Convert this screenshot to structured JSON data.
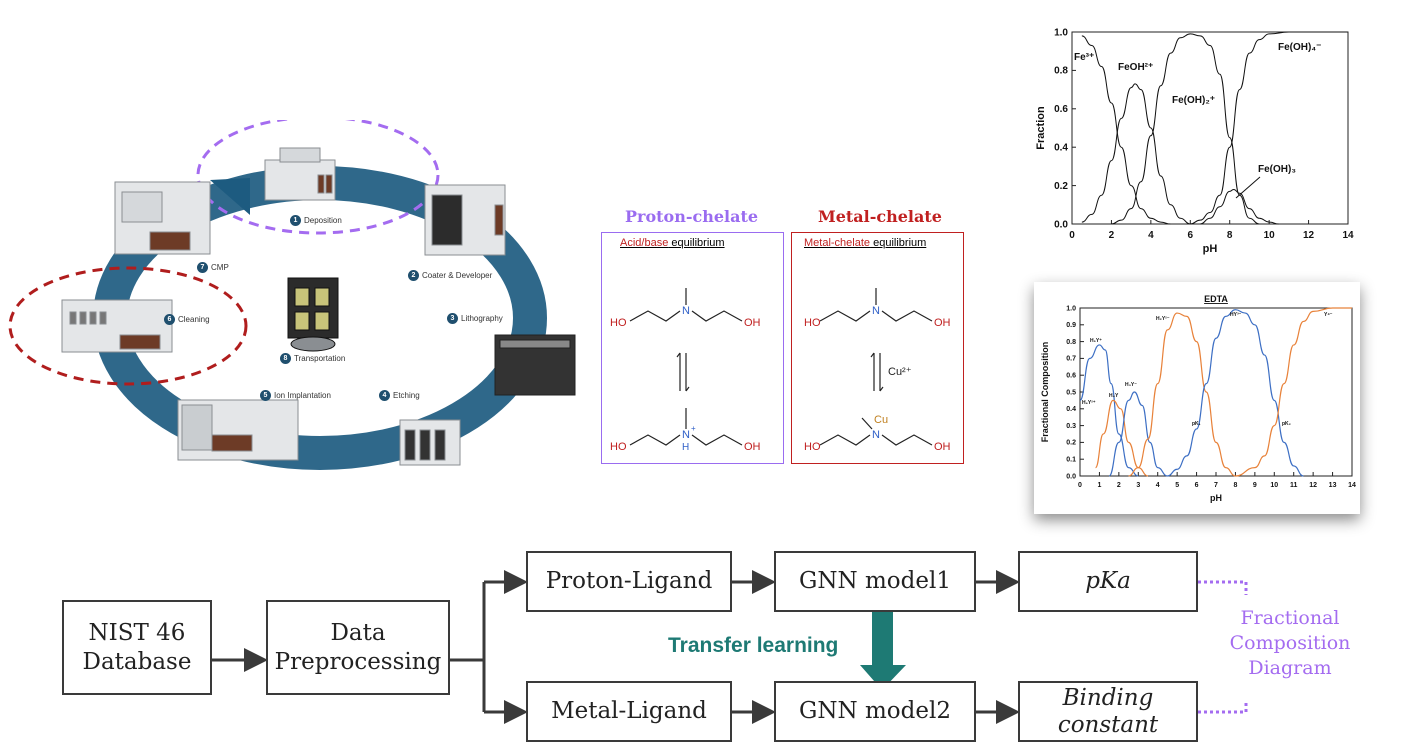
{
  "fab_cycle": {
    "steps": [
      {
        "num": "1",
        "label": "Deposition"
      },
      {
        "num": "2",
        "label": "Coater & Developer"
      },
      {
        "num": "3",
        "label": "Lithography"
      },
      {
        "num": "4",
        "label": "Etching"
      },
      {
        "num": "5",
        "label": "Ion Implantation"
      },
      {
        "num": "6",
        "label": "Cleaning"
      },
      {
        "num": "7",
        "label": "CMP"
      },
      {
        "num": "8",
        "label": "Transportation"
      }
    ]
  },
  "chelates": {
    "proton": {
      "title": "Proton-chelate",
      "subtitle_red": "Acid/base",
      "subtitle_black": " equilibrium"
    },
    "metal": {
      "title": "Metal-chelate",
      "subtitle_red": "Metal-chelate",
      "subtitle_black": " equilibrium",
      "ion": "Cu²⁺",
      "metal_atom": "Cu"
    },
    "atoms": {
      "ho": "HO",
      "oh": "OH",
      "n": "N",
      "h": "H",
      "plus": "+"
    }
  },
  "chart_data": [
    {
      "type": "line",
      "title": "",
      "xlabel": "pH",
      "ylabel": "Fraction",
      "xlim": [
        0,
        14
      ],
      "ylim": [
        0,
        1.0
      ],
      "xticks": [
        "0",
        "2",
        "4",
        "6",
        "8",
        "10",
        "12",
        "14"
      ],
      "yticks": [
        "0.0",
        "0.2",
        "0.4",
        "0.6",
        "0.8",
        "1.0"
      ],
      "series": [
        {
          "name": "Fe³⁺",
          "x": [
            0.5,
            1,
            1.5,
            2,
            2.5,
            3,
            3.5,
            4,
            4.5,
            5
          ],
          "y": [
            0.98,
            0.93,
            0.82,
            0.63,
            0.4,
            0.2,
            0.08,
            0.03,
            0.01,
            0.0
          ]
        },
        {
          "name": "FeOH²⁺",
          "x": [
            0.5,
            1,
            1.5,
            2,
            2.5,
            3,
            3.2,
            3.5,
            4,
            4.5,
            5,
            5.5,
            6
          ],
          "y": [
            0.01,
            0.05,
            0.15,
            0.33,
            0.55,
            0.71,
            0.73,
            0.7,
            0.5,
            0.25,
            0.1,
            0.03,
            0.0
          ]
        },
        {
          "name": "Fe(OH)₂⁺",
          "x": [
            2,
            2.5,
            3,
            3.5,
            4,
            4.5,
            5,
            5.5,
            6,
            6.5,
            7,
            7.5,
            8,
            8.5,
            9,
            9.5
          ],
          "y": [
            0.0,
            0.02,
            0.08,
            0.22,
            0.46,
            0.72,
            0.89,
            0.97,
            0.99,
            0.98,
            0.93,
            0.78,
            0.45,
            0.15,
            0.03,
            0.0
          ]
        },
        {
          "name": "Fe(OH)₃",
          "x": [
            6.5,
            7,
            7.5,
            8,
            8.2,
            8.5,
            9,
            9.5,
            10,
            10.5
          ],
          "y": [
            0.0,
            0.03,
            0.09,
            0.17,
            0.18,
            0.16,
            0.08,
            0.03,
            0.01,
            0.0
          ]
        },
        {
          "name": "Fe(OH)₄⁻",
          "x": [
            6,
            6.5,
            7,
            7.5,
            8,
            8.5,
            9,
            9.5,
            10,
            11,
            12,
            13,
            14
          ],
          "y": [
            0.0,
            0.02,
            0.06,
            0.15,
            0.4,
            0.7,
            0.89,
            0.96,
            0.99,
            1.0,
            1.0,
            1.0,
            1.0
          ]
        }
      ],
      "annotations": [
        "Fe³⁺",
        "FeOH²⁺",
        "Fe(OH)₂⁺",
        "Fe(OH)₃",
        "Fe(OH)₄⁻"
      ]
    },
    {
      "type": "line",
      "title": "EDTA",
      "xlabel": "pH",
      "ylabel": "Fractional Composition",
      "xlim": [
        0,
        14
      ],
      "ylim": [
        0,
        1.0
      ],
      "xticks": [
        "0",
        "1",
        "2",
        "3",
        "4",
        "5",
        "6",
        "7",
        "8",
        "9",
        "10",
        "11",
        "12",
        "13",
        "14"
      ],
      "yticks": [
        "0.0",
        "0.1",
        "0.2",
        "0.3",
        "0.4",
        "0.5",
        "0.6",
        "0.7",
        "0.8",
        "0.9",
        "1.0"
      ],
      "series": [
        {
          "name": "H₅Y⁺",
          "color": "#3d6fc4",
          "x": [
            0,
            0.5,
            1,
            1.3,
            1.6,
            2,
            2.5,
            3
          ],
          "y": [
            0.45,
            0.7,
            0.78,
            0.75,
            0.55,
            0.25,
            0.05,
            0.0
          ]
        },
        {
          "name": "H₄Y",
          "color": "#e8823a",
          "x": [
            0.8,
            1.2,
            1.7,
            2.1,
            2.5,
            3,
            3.5
          ],
          "y": [
            0.05,
            0.25,
            0.45,
            0.4,
            0.2,
            0.05,
            0.0
          ]
        },
        {
          "name": "H₃Y⁻",
          "color": "#3d6fc4",
          "x": [
            1.5,
            2,
            2.5,
            2.8,
            3.2,
            3.6,
            4,
            4.5
          ],
          "y": [
            0.0,
            0.2,
            0.45,
            0.5,
            0.42,
            0.2,
            0.05,
            0.0
          ]
        },
        {
          "name": "H₂Y²⁻",
          "color": "#e8823a",
          "x": [
            2.5,
            3,
            3.5,
            4,
            4.5,
            5,
            5.5,
            6,
            6.5,
            7,
            7.5,
            8
          ],
          "y": [
            0.0,
            0.05,
            0.22,
            0.55,
            0.87,
            0.97,
            0.95,
            0.8,
            0.5,
            0.2,
            0.05,
            0.0
          ]
        },
        {
          "name": "HY³⁻",
          "color": "#3d6fc4",
          "x": [
            4.5,
            5,
            5.5,
            6,
            6.5,
            7,
            7.5,
            8,
            8.5,
            9,
            9.5,
            10,
            10.5,
            11,
            11.5
          ],
          "y": [
            0.0,
            0.04,
            0.12,
            0.28,
            0.55,
            0.82,
            0.95,
            0.99,
            0.97,
            0.9,
            0.72,
            0.45,
            0.2,
            0.06,
            0.0
          ]
        },
        {
          "name": "Y⁴⁻",
          "color": "#e8823a",
          "x": [
            8,
            9,
            9.5,
            10,
            10.5,
            11,
            11.5,
            12,
            13,
            14
          ],
          "y": [
            0.0,
            0.05,
            0.12,
            0.3,
            0.55,
            0.78,
            0.92,
            0.98,
            1.0,
            1.0
          ]
        }
      ],
      "annotations": [
        "H₆Y²⁺",
        "H₅Y⁺",
        "H₄Y",
        "H₃Y⁻",
        "H₂Y²⁻",
        "HY³⁻",
        "Y⁴⁻",
        "pK₁",
        "pK₂"
      ]
    }
  ],
  "flow": {
    "source": "NIST 46\nDatabase",
    "preprocess": "Data\nPreprocessing",
    "proton_ligand": "Proton-Ligand",
    "metal_ligand": "Metal-Ligand",
    "model1": "GNN model1",
    "model2": "GNN model2",
    "out1": "pKa",
    "out2": "Binding\nconstant",
    "transfer": "Transfer learning",
    "fcd": "Fractional\nComposition\nDiagram"
  },
  "colors": {
    "cycle_arrow": "#1d5b80",
    "dash_purple": "#a46cf0",
    "dash_red": "#b01d1d",
    "proton_box": "#9a6cf0",
    "metal_box": "#c02020",
    "transfer_teal": "#1e7a74",
    "fcd_purple": "#a46cf0"
  }
}
